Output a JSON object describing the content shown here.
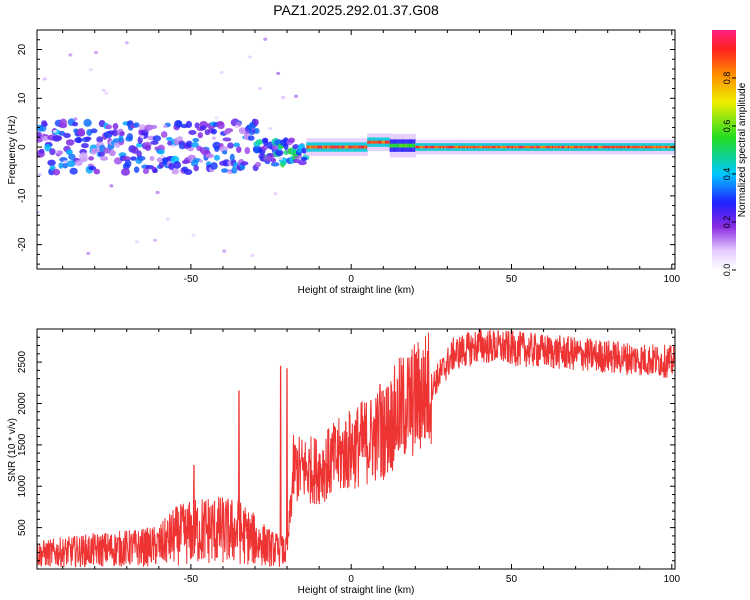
{
  "figure_title": "PAZ1.2025.292.01.37.G08",
  "chart_data": [
    {
      "type": "heatmap",
      "title": "PAZ1.2025.292.01.37.G08",
      "xlabel": "Height of straight line (km)",
      "ylabel": "Frequency (Hz)",
      "xlim": [
        -98,
        101
      ],
      "ylim": [
        -25,
        24
      ],
      "xticks": [
        -50,
        0,
        50,
        100
      ],
      "xtick_labels": [
        "-50",
        "0",
        "50",
        "100"
      ],
      "yticks": [
        -20,
        -10,
        0,
        10,
        20
      ],
      "ytick_labels": [
        "-20",
        "-10",
        "0",
        "10",
        "20"
      ],
      "colorbar": {
        "label": "Normalized spectral amplitude",
        "range": [
          0,
          1
        ],
        "ticks": [
          0.0,
          0.2,
          0.4,
          0.6,
          0.8
        ],
        "tick_labels": [
          "0.0",
          "0.2",
          "0.4",
          "0.6",
          "0.8"
        ],
        "colormap": "rainbow (white-violet-blue-cyan-green-yellow-orange-red-pink)"
      },
      "description_points": [
        {
          "x_range": [
            -98,
            -30
          ],
          "freq_center": 0,
          "freq_spread": 4,
          "amplitude": 0.25
        },
        {
          "x_range": [
            -30,
            -14
          ],
          "freq_center": -1,
          "freq_spread": 2,
          "amplitude": 0.35
        },
        {
          "x_range": [
            -14,
            5
          ],
          "freq_center": 0,
          "freq_spread": 0.6,
          "amplitude": 0.95
        },
        {
          "x_range": [
            5,
            12
          ],
          "freq_center": 1,
          "freq_spread": 0.6,
          "amplitude": 0.95
        },
        {
          "x_range": [
            12,
            20
          ],
          "freq_center": 0.3,
          "freq_spread": 0.8,
          "amplitude": 0.6
        },
        {
          "x_range": [
            20,
            101
          ],
          "freq_center": 0,
          "freq_spread": 0.5,
          "amplitude": 0.95
        }
      ]
    },
    {
      "type": "line",
      "xlabel": "Height of straight line (km)",
      "ylabel": "SNR (10 * v/v)",
      "xlim": [
        -98,
        101
      ],
      "ylim": [
        0,
        2900
      ],
      "xticks": [
        -50,
        0,
        50,
        100
      ],
      "xtick_labels": [
        "-50",
        "0",
        "50",
        "100"
      ],
      "yticks": [
        500,
        1000,
        1500,
        2000,
        2500
      ],
      "ytick_labels": [
        "500",
        "1000",
        "1500",
        "2000",
        "2500"
      ],
      "color": "#ee3333",
      "envelope": [
        {
          "x": -98,
          "y": 180
        },
        {
          "x": -80,
          "y": 230
        },
        {
          "x": -65,
          "y": 260
        },
        {
          "x": -60,
          "y": 280
        },
        {
          "x": -55,
          "y": 400
        },
        {
          "x": -45,
          "y": 480
        },
        {
          "x": -35,
          "y": 450
        },
        {
          "x": -25,
          "y": 250
        },
        {
          "x": -20,
          "y": 200
        },
        {
          "x": -18,
          "y": 1200
        },
        {
          "x": -10,
          "y": 1200
        },
        {
          "x": 0,
          "y": 1450
        },
        {
          "x": 10,
          "y": 1650
        },
        {
          "x": 15,
          "y": 1900
        },
        {
          "x": 25,
          "y": 2200
        },
        {
          "x": 32,
          "y": 2600
        },
        {
          "x": 40,
          "y": 2700
        },
        {
          "x": 55,
          "y": 2650
        },
        {
          "x": 70,
          "y": 2600
        },
        {
          "x": 85,
          "y": 2550
        },
        {
          "x": 101,
          "y": 2500
        }
      ],
      "spikes": [
        {
          "x": -49,
          "y": 1250
        },
        {
          "x": -35,
          "y": 2150
        },
        {
          "x": -22,
          "y": 2450
        },
        {
          "x": -20,
          "y": 2420
        },
        {
          "x": 9,
          "y": 2230
        },
        {
          "x": 40,
          "y": 2900
        }
      ]
    }
  ]
}
